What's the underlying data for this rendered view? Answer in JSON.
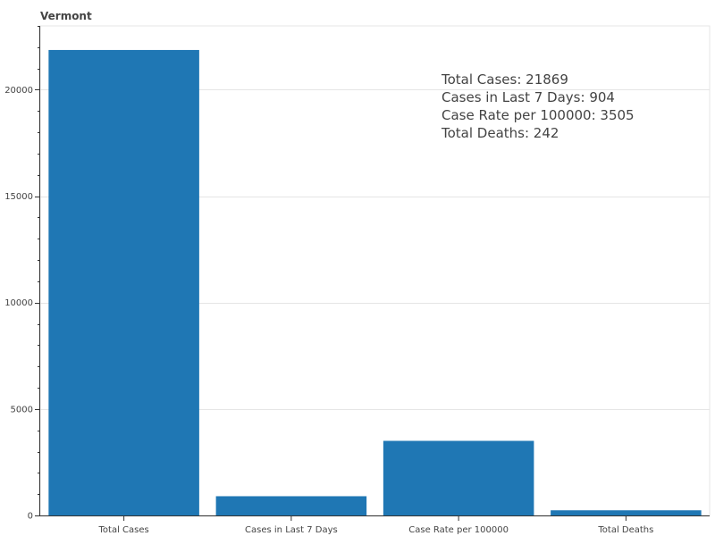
{
  "chart_data": {
    "type": "bar",
    "title": "Vermont",
    "categories": [
      "Total Cases",
      "Cases in Last 7 Days",
      "Case Rate per 100000",
      "Total Deaths"
    ],
    "values": [
      21869,
      904,
      3505,
      242
    ],
    "ylim": [
      0,
      23000
    ],
    "yticks": [
      0,
      5000,
      10000,
      15000,
      20000
    ],
    "bar_color": "#1f77b4",
    "grid": true,
    "annotations": [
      "Total Cases: 21869",
      "Cases in Last 7 Days: 904",
      "Case Rate per 100000: 3505",
      "Total Deaths: 242"
    ]
  }
}
